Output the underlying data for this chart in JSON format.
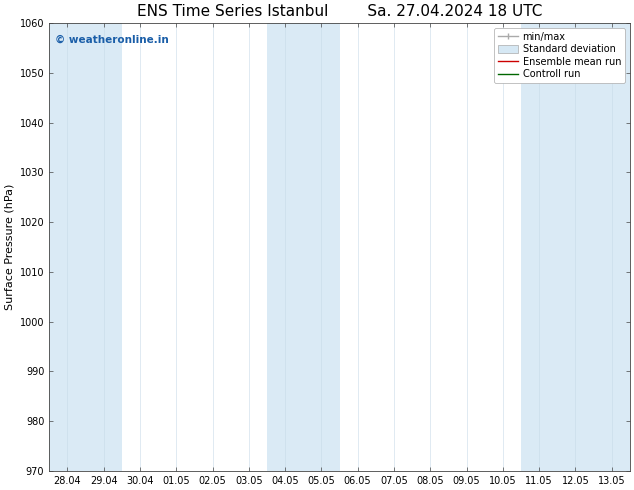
{
  "title_left": "ENS Time Series Istanbul",
  "title_right": "Sa. 27.04.2024 18 UTC",
  "ylabel": "Surface Pressure (hPa)",
  "ylim": [
    970,
    1060
  ],
  "yticks": [
    970,
    980,
    990,
    1000,
    1010,
    1020,
    1030,
    1040,
    1050,
    1060
  ],
  "xtick_labels": [
    "28.04",
    "29.04",
    "30.04",
    "01.05",
    "02.05",
    "03.05",
    "04.05",
    "05.05",
    "06.05",
    "07.05",
    "08.05",
    "09.05",
    "10.05",
    "11.05",
    "12.05",
    "13.05"
  ],
  "shaded_columns": [
    0,
    1,
    6,
    7,
    13,
    14,
    15
  ],
  "shade_color": "#daeaf5",
  "background_color": "#ffffff",
  "watermark_text": "© weatheronline.in",
  "watermark_color": "#1a5ea8",
  "legend_labels": [
    "min/max",
    "Standard deviation",
    "Ensemble mean run",
    "Controll run"
  ],
  "legend_line_color": "#aaaaaa",
  "legend_shade_color": "#d6e8f4",
  "legend_red": "#cc0000",
  "legend_green": "#006600",
  "title_fontsize": 11,
  "ylabel_fontsize": 8,
  "tick_fontsize": 7,
  "legend_fontsize": 7,
  "watermark_fontsize": 7.5,
  "figwidth": 6.34,
  "figheight": 4.9,
  "dpi": 100
}
